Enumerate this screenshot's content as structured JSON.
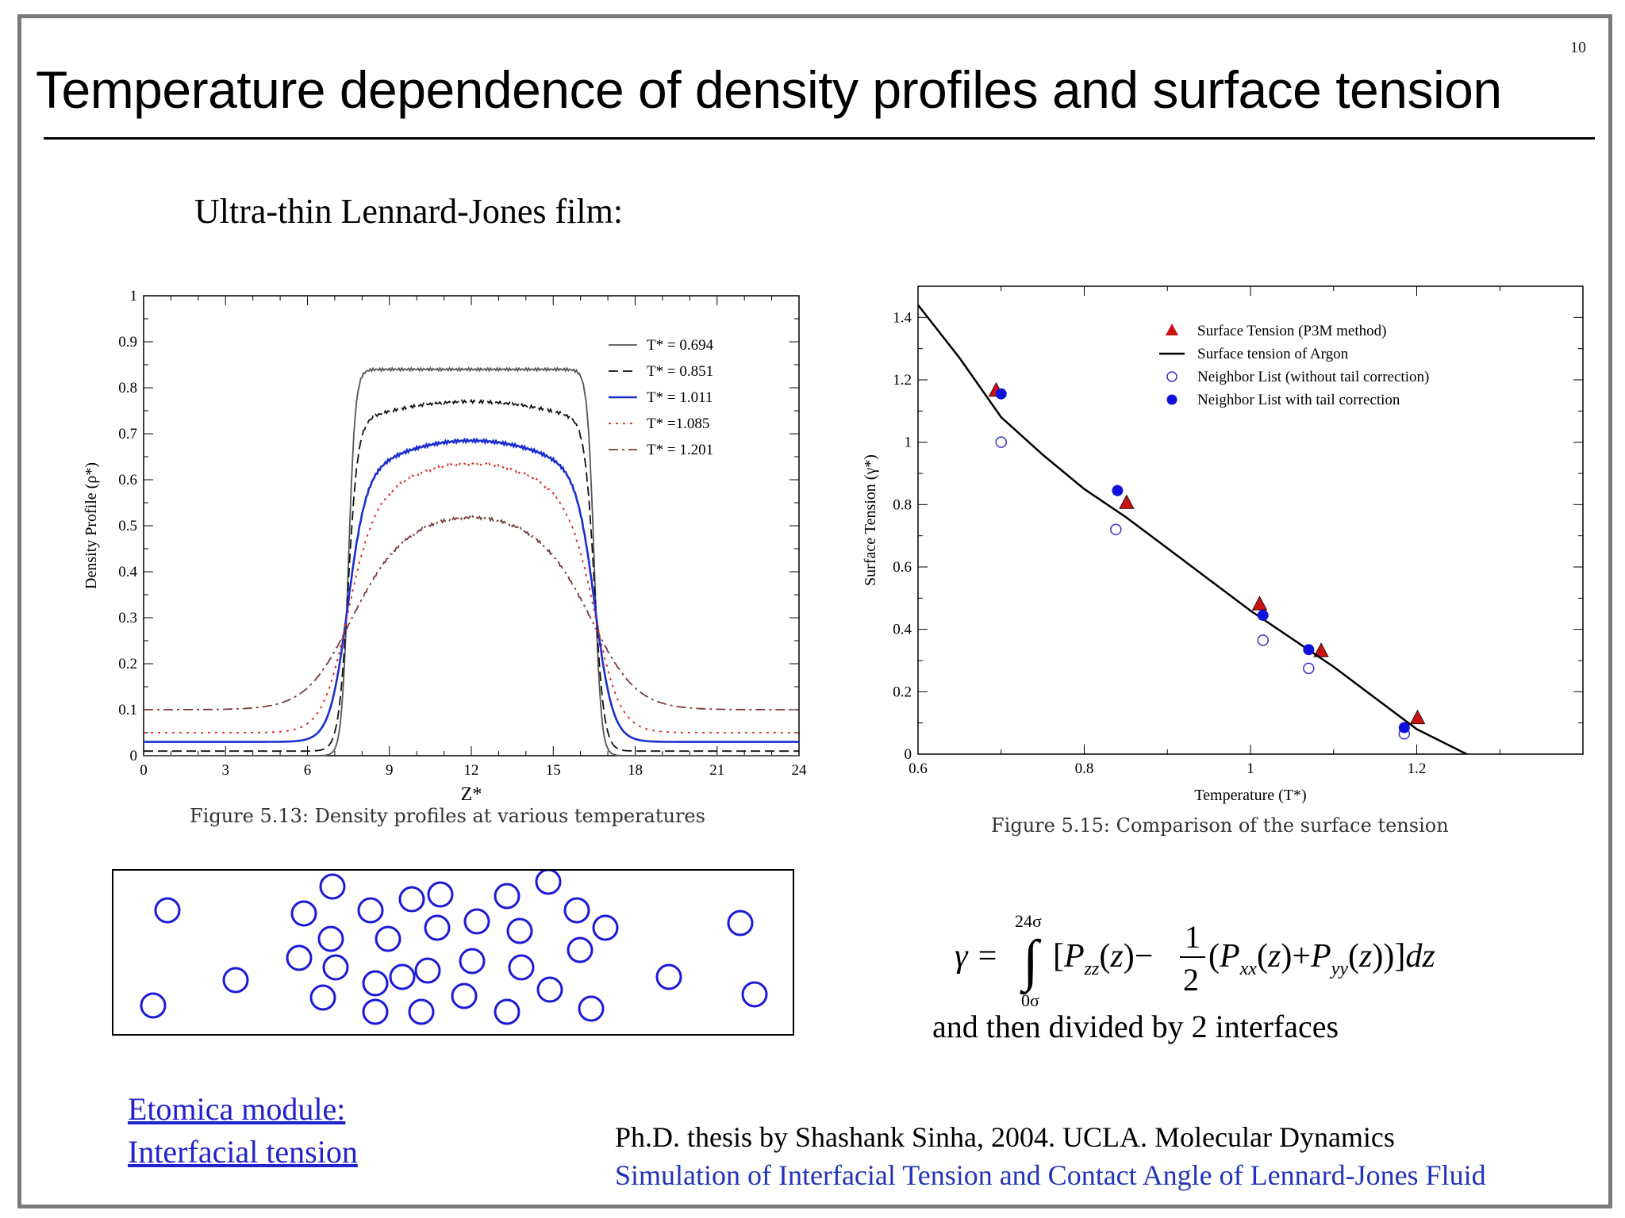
{
  "slide": {
    "number": "10",
    "title": "Temperature dependence of density profiles and surface tension",
    "subtitle": "Ultra-thin Lennard-Jones film:",
    "formula_lower": "0σ",
    "formula_upper": "24σ",
    "formula_after": "and then divided by 2 interfaces",
    "link_line1": "Etomica module: ",
    "link_line2": "Interfacial tension",
    "reference_line1": "Ph.D. thesis by Shashank Sinha, 2004. UCLA. Molecular Dynamics",
    "reference_line2": "Simulation of Interfacial Tension and Contact Angle of Lennard-Jones Fluid"
  },
  "chart_data": [
    {
      "type": "line",
      "id": "density",
      "caption": "Figure 5.13: Density profiles at various temperatures",
      "xlabel": "Z*",
      "ylabel": "Density Profile (ρ*)",
      "xlim": [
        0,
        24
      ],
      "ylim": [
        0,
        1
      ],
      "xticks": [
        0,
        3,
        6,
        9,
        12,
        15,
        18,
        21,
        24
      ],
      "yticks": [
        0,
        0.1,
        0.2,
        0.3,
        0.4,
        0.5,
        0.6,
        0.7,
        0.8,
        0.9,
        1
      ],
      "legend_position": "top-right",
      "series": [
        {
          "name": "T* = 0.694",
          "bulk": 0.84,
          "vapor": 0.0,
          "width": 0.25,
          "style": "solid",
          "color": "#555555"
        },
        {
          "name": "T* = 0.851",
          "bulk": 0.77,
          "vapor": 0.01,
          "width": 0.35,
          "style": "dashed",
          "color": "#111111"
        },
        {
          "name": "T* = 1.011",
          "bulk": 0.685,
          "vapor": 0.03,
          "width": 0.65,
          "style": "solid",
          "color": "#1a2fd0"
        },
        {
          "name": "T* =1.085",
          "bulk": 0.635,
          "vapor": 0.05,
          "width": 0.9,
          "style": "dotted",
          "color": "#e02020"
        },
        {
          "name": "T* = 1.201",
          "bulk": 0.52,
          "vapor": 0.1,
          "width": 1.5,
          "style": "dashdot",
          "color": "#7a3a3a"
        }
      ]
    },
    {
      "type": "scatter",
      "id": "tension",
      "caption": "Figure 5.15: Comparison of the surface tension",
      "xlabel": "Temperature (T*)",
      "ylabel": "Surface Tension (γ*)",
      "xlim": [
        0.6,
        1.4
      ],
      "ylim": [
        0,
        1.5
      ],
      "xticks": [
        0.6,
        0.8,
        1,
        1.2
      ],
      "yticks": [
        0,
        0.2,
        0.4,
        0.6,
        0.8,
        1,
        1.2,
        1.4
      ],
      "legend_position": "top-right",
      "series": [
        {
          "name": "Surface Tension (P3M method)",
          "marker": "triangle",
          "color": "#cc1111",
          "x": [
            0.694,
            0.851,
            1.011,
            1.085,
            1.201
          ],
          "y": [
            1.165,
            0.805,
            0.48,
            0.33,
            0.115
          ]
        },
        {
          "name": "Surface tension of Argon",
          "marker": "line",
          "color": "#000000",
          "x": [
            0.6,
            0.65,
            0.7,
            0.75,
            0.8,
            0.85,
            0.9,
            0.95,
            1.0,
            1.05,
            1.1,
            1.15,
            1.2,
            1.26
          ],
          "y": [
            1.44,
            1.27,
            1.08,
            0.96,
            0.85,
            0.76,
            0.66,
            0.56,
            0.46,
            0.37,
            0.28,
            0.18,
            0.08,
            0.0
          ]
        },
        {
          "name": "Neighbor List (without tail correction)",
          "marker": "open-circle",
          "color": "#3333cc",
          "x": [
            0.7,
            0.838,
            1.015,
            1.07,
            1.185
          ],
          "y": [
            1.0,
            0.72,
            0.365,
            0.275,
            0.065
          ]
        },
        {
          "name": "Neighbor List with tail correction",
          "marker": "filled-circle",
          "color": "#1111dd",
          "x": [
            0.7,
            0.84,
            1.015,
            1.07,
            1.185
          ],
          "y": [
            1.155,
            0.845,
            0.445,
            0.335,
            0.085
          ]
        }
      ]
    }
  ]
}
